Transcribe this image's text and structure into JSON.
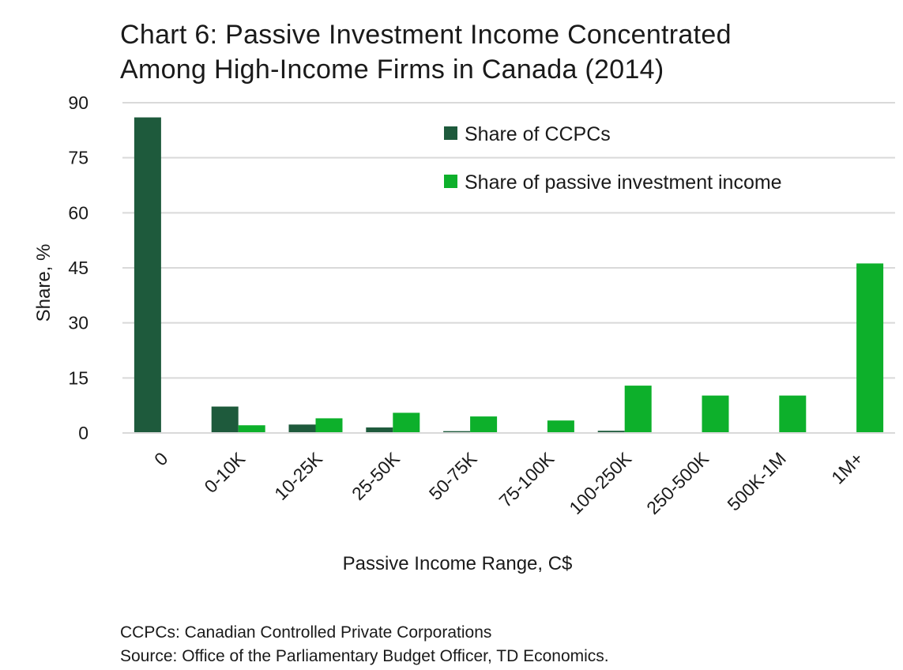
{
  "title_lines": [
    "Chart 6: Passive Investment Income Concentrated",
    "Among High-Income Firms in Canada (2014)"
  ],
  "footnotes": [
    "CCPCs: Canadian Controlled Private Corporations",
    "Source: Office of the Parliamentary Budget Officer, TD Economics."
  ],
  "colors": {
    "ccpc": "#1e5a3c",
    "passive": "#0db02b",
    "grid": "#d9d9d9"
  },
  "chart_data": {
    "type": "bar",
    "xlabel": "Passive Income Range, C$",
    "ylabel": "Share, %",
    "ylim": [
      0,
      90
    ],
    "yticks": [
      0,
      15,
      30,
      45,
      60,
      75,
      90
    ],
    "grid": true,
    "legend_position": "top-right",
    "categories": [
      "0",
      "0-10K",
      "10-25K",
      "25-50K",
      "50-75K",
      "75-100K",
      "100-250K",
      "250-500K",
      "500K-1M",
      "1M+"
    ],
    "series": [
      {
        "name": "Share of CCPCs",
        "color": "#1e5a3c",
        "values": [
          86,
          7.2,
          2.3,
          1.5,
          0.5,
          0,
          0.6,
          0,
          0,
          0
        ]
      },
      {
        "name": "Share of passive investment income",
        "color": "#0db02b",
        "values": [
          0,
          2.1,
          4.0,
          5.5,
          4.5,
          3.4,
          12.9,
          10.2,
          10.2,
          46.2
        ]
      }
    ]
  }
}
